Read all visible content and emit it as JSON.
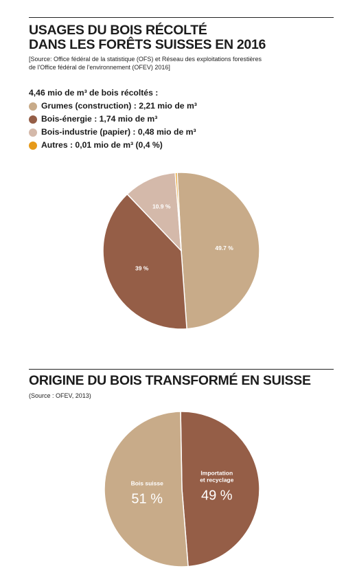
{
  "chart_data": [
    {
      "type": "pie",
      "title": "USAGES DU BOIS RÉCOLTÉ DANS LES FORÊTS SUISSES EN 2016",
      "title_lines": [
        "USAGES DU BOIS RÉCOLTÉ",
        "DANS LES FORÊTS SUISSES EN 2016"
      ],
      "source_lines": [
        "[Source: Office fédéral de la statistique (OFS) et Réseau des exploitations forestières",
        "de l'Office fédéral de l'environnement (OFEV) 2016]"
      ],
      "legend_title": "4,46 mio de m³ de bois récoltés :",
      "legend": [
        {
          "label": "Grumes (construction) : 2,21 mio de m³",
          "color": "#c8ab89"
        },
        {
          "label": "Bois-énergie : 1,74 mio de m³",
          "color": "#955e47"
        },
        {
          "label": "Bois-industrie (papier) : 0,48 mio de m³",
          "color": "#d4b9aa"
        },
        {
          "label": "Autres : 0,01 mio de m³ (0,4 %)",
          "color": "#e69a1a"
        }
      ],
      "slices": [
        {
          "name": "Grumes (construction)",
          "value": 49.7,
          "label": "49.7 %",
          "color": "#c8ab89"
        },
        {
          "name": "Bois-énergie",
          "value": 39,
          "label": "39 %",
          "color": "#955e47"
        },
        {
          "name": "Bois-industrie (papier)",
          "value": 10.9,
          "label": "10.9 %",
          "color": "#d4b9aa"
        },
        {
          "name": "Autres",
          "value": 0.4,
          "label": "",
          "color": "#e69a1a"
        }
      ]
    },
    {
      "type": "pie",
      "title": "ORIGINE DU BOIS TRANSFORMÉ EN SUISSE",
      "title_lines": [
        "ORIGINE DU BOIS TRANSFORMÉ EN SUISSE"
      ],
      "source_lines": [
        "(Source : OFEV, 2013)"
      ],
      "slices": [
        {
          "name": "Importation et recyclage",
          "name_lines": [
            "Importation",
            "et recyclage"
          ],
          "value": 49,
          "label": "49 %",
          "color": "#955e47"
        },
        {
          "name": "Bois suisse",
          "name_lines": [
            "Bois suisse"
          ],
          "value": 51,
          "label": "51 %",
          "color": "#c8ab89"
        }
      ]
    }
  ]
}
